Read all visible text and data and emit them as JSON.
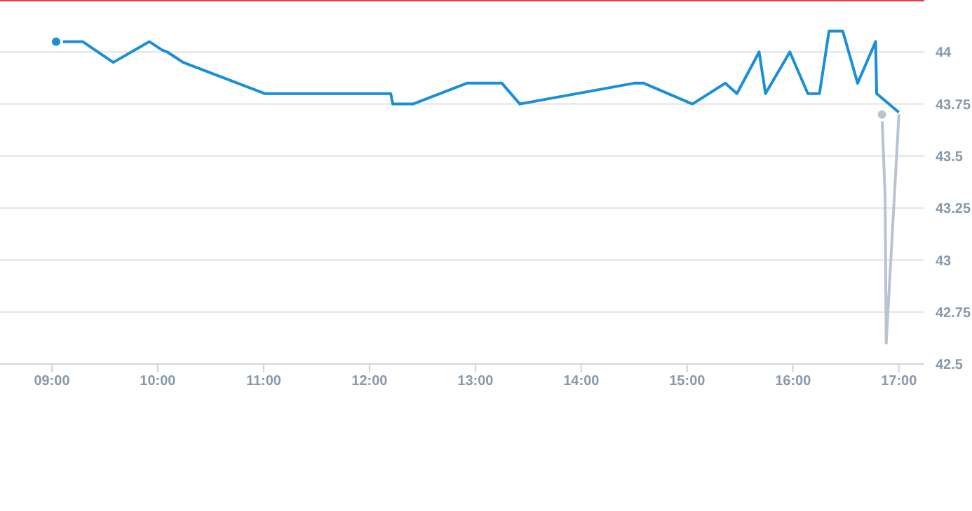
{
  "chart_data": {
    "type": "line",
    "xlim": [
      8.51,
      17.24
    ],
    "ylim": [
      42.5,
      44.25
    ],
    "xticks": [
      {
        "value": 9,
        "label": "09:00"
      },
      {
        "value": 10,
        "label": "10:00"
      },
      {
        "value": 11,
        "label": "11:00"
      },
      {
        "value": 12,
        "label": "12:00"
      },
      {
        "value": 13,
        "label": "13:00"
      },
      {
        "value": 14,
        "label": "14:00"
      },
      {
        "value": 15,
        "label": "15:00"
      },
      {
        "value": 16,
        "label": "16:00"
      },
      {
        "value": 17,
        "label": "17:00"
      }
    ],
    "yticks": [
      42.5,
      42.75,
      43,
      43.25,
      43.5,
      43.75,
      44
    ],
    "grid": "y",
    "marker": "none",
    "line_style": "solid",
    "ref_lines": [
      {
        "axis": "y",
        "value": 44.25,
        "color": "#e0413a"
      }
    ],
    "series": [
      {
        "color": "#1a8fd8",
        "x": [
          9.04,
          9.29,
          9.58,
          9.92,
          10.04,
          10.09,
          10.24,
          11.01,
          12.2,
          12.22,
          12.41,
          12.92,
          13.25,
          13.42,
          14.5,
          14.59,
          15.05,
          15.36,
          15.47,
          15.68,
          15.74,
          15.97,
          16.14,
          16.25,
          16.34,
          16.47,
          16.61,
          16.78,
          16.79,
          17.0
        ],
        "values": [
          44.05,
          44.05,
          43.95,
          44.05,
          44.01,
          44,
          43.95,
          43.8,
          43.8,
          43.75,
          43.75,
          43.85,
          43.85,
          43.75,
          43.85,
          43.85,
          43.75,
          43.85,
          43.8,
          44,
          43.8,
          44,
          43.8,
          43.8,
          44.1,
          44.1,
          43.85,
          44.05,
          43.8,
          43.71
        ]
      },
      {
        "color": "#b8c4cf",
        "x": [
          16.84,
          16.87,
          16.88,
          17.0
        ],
        "values": [
          43.7,
          43.3,
          42.6,
          43.7
        ]
      }
    ]
  }
}
